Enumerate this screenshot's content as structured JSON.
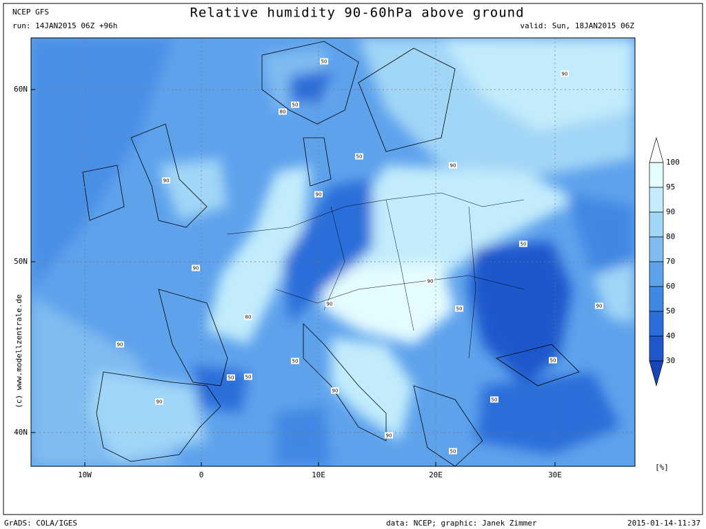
{
  "header": {
    "model": "NCEP GFS",
    "run": "run: 14JAN2015 06Z +96h",
    "title": "Relative humidity 90-60hPa above ground",
    "valid": "valid: Sun, 18JAN2015 06Z"
  },
  "map": {
    "lat_labels": [
      "60N",
      "50N",
      "40N"
    ],
    "lon_labels": [
      "10W",
      "0",
      "10E",
      "20E",
      "30E"
    ],
    "contour_labels": [
      "50",
      "50",
      "80",
      "90",
      "50",
      "90",
      "90",
      "90",
      "50",
      "90",
      "90",
      "90",
      "50",
      "90",
      "80",
      "90",
      "50",
      "50",
      "50",
      "50",
      "90",
      "90",
      "50",
      "90",
      "50"
    ],
    "copyright": "(c) www.modellzentrale.de"
  },
  "colorbar": {
    "levels": [
      100,
      95,
      90,
      80,
      70,
      60,
      50,
      40,
      30
    ],
    "colors": [
      "#ffffff",
      "#e4fbff",
      "#c2ecfc",
      "#a2d6f7",
      "#80bcf1",
      "#5ea2ec",
      "#3f88e4",
      "#2b6ed9",
      "#1f58cc",
      "#1646b8"
    ],
    "unit": "[%]"
  },
  "footer": {
    "software": "GrADS: COLA/IGES",
    "credits": "data: NCEP; graphic: Janek Zimmer",
    "timestamp": "2015-01-14-11:37"
  }
}
